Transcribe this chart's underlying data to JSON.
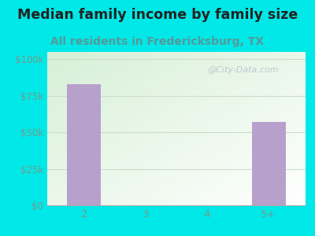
{
  "title": "Median family income by family size",
  "subtitle": "All residents in Fredericksburg, TX",
  "categories": [
    "2",
    "3",
    "4",
    "5+"
  ],
  "values": [
    83000,
    0,
    0,
    57000
  ],
  "bar_color": "#b8a0cc",
  "title_fontsize": 12.5,
  "subtitle_fontsize": 10,
  "subtitle_color": "#559999",
  "title_color": "#222222",
  "bg_color": "#00e8e8",
  "plot_bg_top_left": "#d8efd8",
  "plot_bg_bottom_right": "#f8fff8",
  "yticks": [
    0,
    25000,
    50000,
    75000,
    100000
  ],
  "ytick_labels": [
    "$0",
    "$25k",
    "$50k",
    "$75k",
    "$100k"
  ],
  "ylim": [
    0,
    105000
  ],
  "watermark": "@City-Data.com",
  "watermark_color": "#aabbcc",
  "tick_color": "#779988",
  "grid_color": "#ccddcc",
  "bar_width": 0.55
}
